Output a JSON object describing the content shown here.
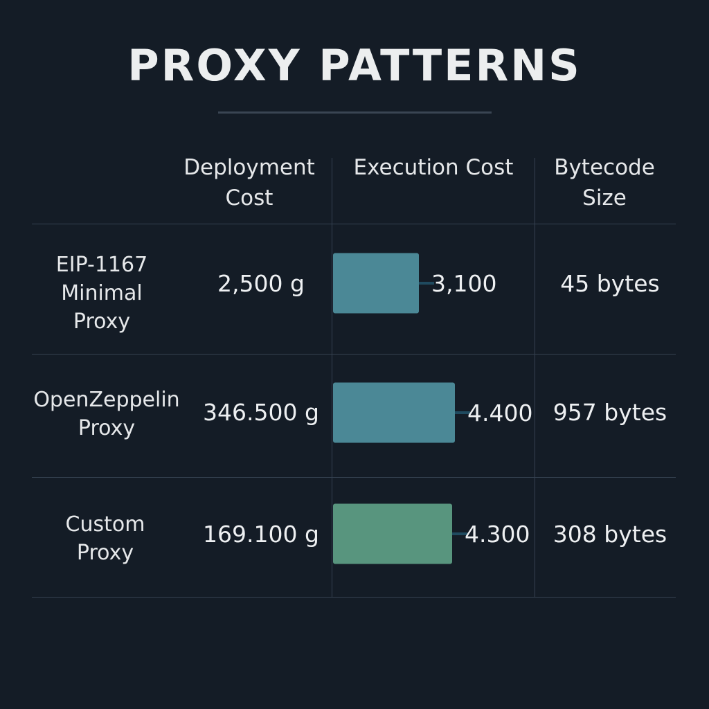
{
  "title": "PROXY PATTERNS",
  "columns": {
    "deployment": [
      "Deployment",
      "Cost"
    ],
    "execution": [
      "Execution Cost"
    ],
    "bytecode": [
      "Bytecode",
      "Size"
    ]
  },
  "rows": [
    {
      "label": [
        "EIP-1167",
        "Minimal",
        "Proxy"
      ],
      "deployment_cost": "2,500 g",
      "execution_cost_label": "3,100",
      "bytecode_size": "45 bytes"
    },
    {
      "label": [
        "OpenZeppelin",
        "Proxy"
      ],
      "deployment_cost": "346.500 g",
      "execution_cost_label": "4.400",
      "bytecode_size": "957 bytes"
    },
    {
      "label": [
        "Custom",
        "Proxy"
      ],
      "deployment_cost": "169.100 g",
      "execution_cost_label": "4.300",
      "bytecode_size": "308 bytes"
    }
  ],
  "chart_data": {
    "type": "bar",
    "title": "PROXY PATTERNS",
    "categories": [
      "EIP-1167 Minimal Proxy",
      "OpenZeppelin Proxy",
      "Custom Proxy"
    ],
    "values": [
      3100,
      4400,
      4300
    ],
    "value_labels": [
      "3,100",
      "4.400",
      "4.300"
    ],
    "colors": [
      "#4b8896",
      "#4b8896",
      "#58957e"
    ],
    "xlabel": "Execution Cost",
    "ylabel": "",
    "grid": false
  }
}
